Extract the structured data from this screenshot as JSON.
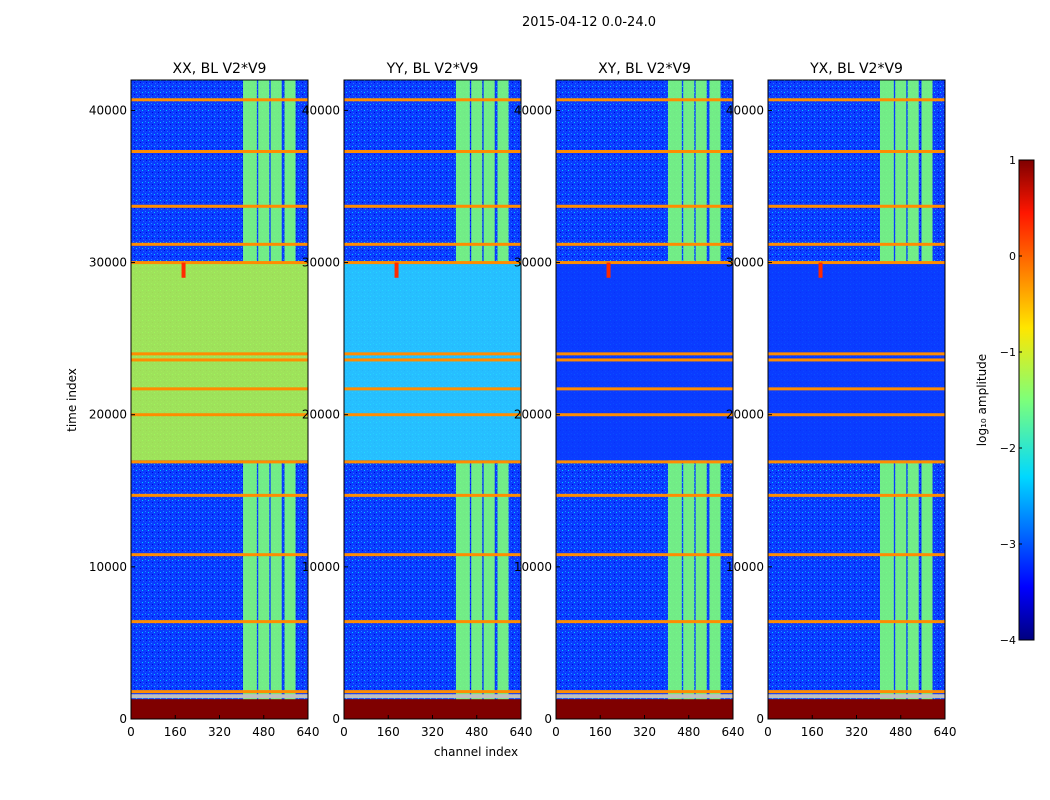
{
  "figure_title": "2015-04-12 0.0-24.0",
  "colors": {
    "saturated": "#7f0000",
    "high": "#ff2a00",
    "orange": "#ff8c00",
    "yellowgreen": "#b9ff3e",
    "green": "#7dff7a",
    "cyan": "#2bd6ff",
    "blue": "#0a3cff",
    "grey": "#bfbfbf"
  },
  "chart_data": [
    {
      "type": "heatmap",
      "title": "XX, BL V2*V9",
      "xlabel": "",
      "ylabel": "time index",
      "xlim": [
        0,
        640
      ],
      "ylim": [
        0,
        42000
      ],
      "xticks": [
        "0",
        "160",
        "320",
        "480",
        "640"
      ],
      "yticks": [
        "0",
        "10000",
        "20000",
        "30000",
        "40000"
      ],
      "bright_columns_channels": [
        [
          405,
          455
        ],
        [
          460,
          500
        ],
        [
          505,
          545
        ],
        [
          555,
          595
        ]
      ],
      "background_band_time": [
        17000,
        30000
      ],
      "background_level": "yellowgreen"
    },
    {
      "type": "heatmap",
      "title": "YY, BL V2*V9",
      "xlabel": "channel index",
      "ylabel": "",
      "xlim": [
        0,
        640
      ],
      "ylim": [
        0,
        42000
      ],
      "xticks": [
        "0",
        "160",
        "320",
        "480",
        "640"
      ],
      "yticks": [
        "0",
        "10000",
        "20000",
        "30000",
        "40000"
      ],
      "bright_columns_channels": [
        [
          405,
          455
        ],
        [
          460,
          500
        ],
        [
          505,
          545
        ],
        [
          555,
          595
        ]
      ],
      "background_band_time": [
        17000,
        30000
      ],
      "background_level": "cyan"
    },
    {
      "type": "heatmap",
      "title": "XY, BL V2*V9",
      "xlabel": "",
      "ylabel": "",
      "xlim": [
        0,
        640
      ],
      "ylim": [
        0,
        42000
      ],
      "xticks": [
        "0",
        "160",
        "320",
        "480",
        "640"
      ],
      "yticks": [
        "0",
        "10000",
        "20000",
        "30000",
        "40000"
      ],
      "bright_columns_channels": [
        [
          405,
          455
        ],
        [
          460,
          500
        ],
        [
          505,
          545
        ],
        [
          555,
          595
        ]
      ],
      "background_band_time": [
        17000,
        30000
      ],
      "background_level": "blue"
    },
    {
      "type": "heatmap",
      "title": "YX, BL V2*V9",
      "xlabel": "",
      "ylabel": "",
      "xlim": [
        0,
        640
      ],
      "ylim": [
        0,
        42000
      ],
      "xticks": [
        "0",
        "160",
        "320",
        "480",
        "640"
      ],
      "yticks": [
        "0",
        "10000",
        "20000",
        "30000",
        "40000"
      ],
      "bright_columns_channels": [
        [
          405,
          455
        ],
        [
          460,
          500
        ],
        [
          505,
          545
        ],
        [
          555,
          595
        ]
      ],
      "background_band_time": [
        17000,
        30000
      ],
      "background_level": "blue"
    }
  ],
  "shared": {
    "saturated_time_range": [
      0,
      1300
    ],
    "horizontal_flag_lines_time": [
      1800,
      6400,
      10800,
      14700,
      16900,
      20000,
      21700,
      23600,
      24000,
      30000,
      31200,
      33700,
      37300,
      40700
    ],
    "spike_channel": 190,
    "spike_time": [
      29000,
      30000
    ]
  },
  "colorbar": {
    "label": "log₁₀ amplitude",
    "range": [
      -4,
      1
    ],
    "ticks": [
      "1",
      "0",
      "−1",
      "−2",
      "−3",
      "−4"
    ]
  }
}
